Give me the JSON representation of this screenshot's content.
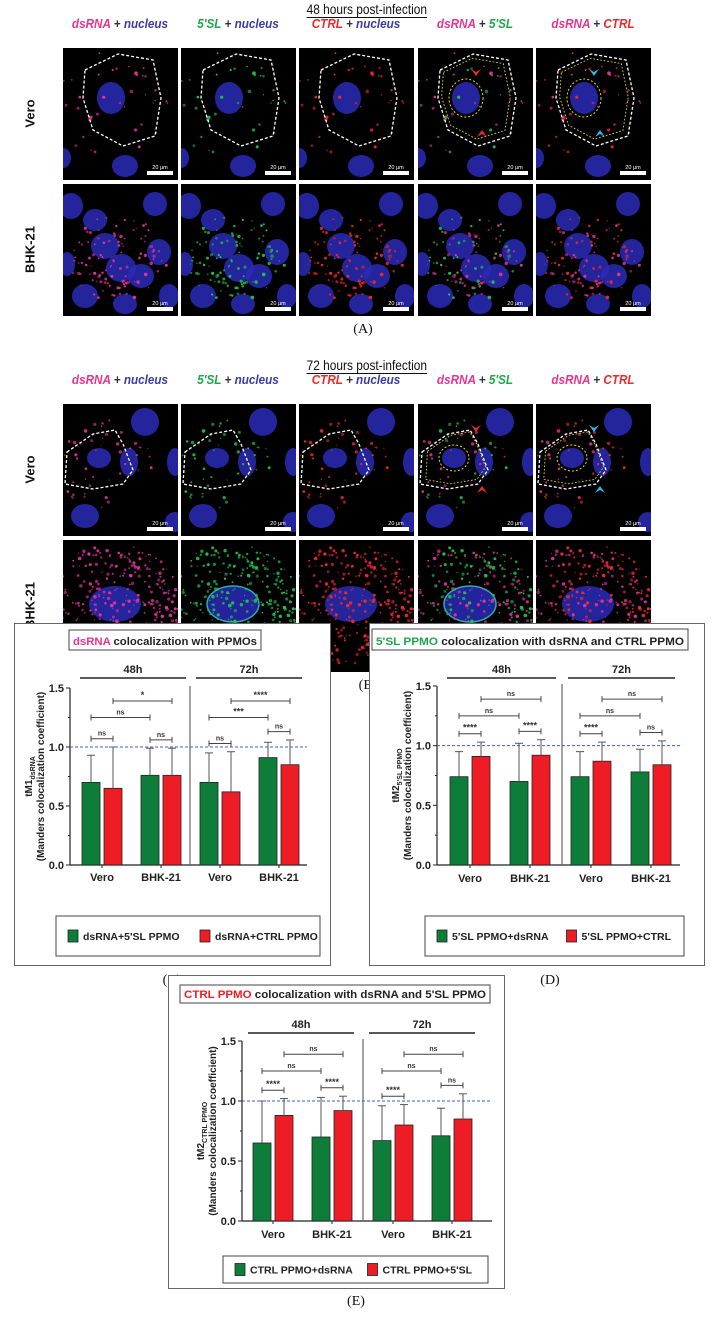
{
  "panels": [
    {
      "panel_label": "(A)",
      "title": "48 hours post-infection",
      "rows": [
        "Vero",
        "BHK-21"
      ],
      "columns": [
        [
          {
            "text": "dsRNA",
            "color": "#e8338b"
          },
          {
            "text": " + ",
            "color": "#333333"
          },
          {
            "text": "nucleus",
            "color": "#3b3ba6"
          }
        ],
        [
          {
            "text": "5'SL",
            "color": "#1fa64a"
          },
          {
            "text": " + ",
            "color": "#333333"
          },
          {
            "text": "nucleus",
            "color": "#3b3ba6"
          }
        ],
        [
          {
            "text": "CTRL",
            "color": "#ee2a2a"
          },
          {
            "text": " + ",
            "color": "#333333"
          },
          {
            "text": "nucleus",
            "color": "#3b3ba6"
          }
        ],
        [
          {
            "text": "dsRNA",
            "color": "#e8338b"
          },
          {
            "text": " + ",
            "color": "#333333"
          },
          {
            "text": "5'SL",
            "color": "#1fa64a"
          }
        ],
        [
          {
            "text": "dsRNA",
            "color": "#e8338b"
          },
          {
            "text": " + ",
            "color": "#333333"
          },
          {
            "text": "CTRL",
            "color": "#ee2a2a"
          }
        ]
      ],
      "scale_bar": "20 µm"
    },
    {
      "panel_label": "(B)",
      "title": "72 hours post-infection",
      "rows": [
        "Vero",
        "BHK-21"
      ],
      "columns": [
        [
          {
            "text": "dsRNA",
            "color": "#e8338b"
          },
          {
            "text": " + ",
            "color": "#333333"
          },
          {
            "text": "nucleus",
            "color": "#3b3ba6"
          }
        ],
        [
          {
            "text": "5'SL",
            "color": "#1fa64a"
          },
          {
            "text": " + ",
            "color": "#333333"
          },
          {
            "text": "nucleus",
            "color": "#3b3ba6"
          }
        ],
        [
          {
            "text": "CTRL",
            "color": "#ee2a2a"
          },
          {
            "text": " + ",
            "color": "#333333"
          },
          {
            "text": "nucleus",
            "color": "#3b3ba6"
          }
        ],
        [
          {
            "text": "dsRNA",
            "color": "#e8338b"
          },
          {
            "text": " + ",
            "color": "#333333"
          },
          {
            "text": "5'SL",
            "color": "#1fa64a"
          }
        ],
        [
          {
            "text": "dsRNA",
            "color": "#e8338b"
          },
          {
            "text": " + ",
            "color": "#333333"
          },
          {
            "text": "CTRL",
            "color": "#ee2a2a"
          }
        ]
      ],
      "scale_bar": "20 µm"
    }
  ],
  "chart_data": [
    {
      "type": "bar",
      "panel_label": "(C)",
      "title_highlight": "dsRNA",
      "title_highlight_color": "#e8338b",
      "title_rest": " colocalization with  PPMOs",
      "ylabel_main": "tM1",
      "ylabel_sub": "dsRNA",
      "ylabel_line2": "(Manders colocalization coefficient)",
      "ylim": [
        0,
        1.5
      ],
      "yticks": [
        "0.0",
        "0.5",
        "1.0",
        "1.5"
      ],
      "reference_line": 1.0,
      "groups": [
        "48h",
        "72h"
      ],
      "categories": [
        "Vero",
        "BHK-21",
        "Vero",
        "BHK-21"
      ],
      "series": [
        {
          "name": "dsRNA+5'SL PPMO",
          "color": "#0e7d3a",
          "values": [
            0.7,
            0.76,
            0.7,
            0.91
          ],
          "error_top": [
            0.93,
            0.99,
            0.95,
            1.04
          ]
        },
        {
          "name": "dsRNA+CTRL PPMO",
          "color": "#ee1c25",
          "values": [
            0.65,
            0.76,
            0.62,
            0.85
          ],
          "error_top": [
            1.0,
            0.99,
            0.96,
            1.06
          ]
        }
      ],
      "comparisons": [
        {
          "a": [
            0,
            0
          ],
          "b": [
            0,
            1
          ],
          "label": "ns"
        },
        {
          "a": [
            1,
            0
          ],
          "b": [
            1,
            1
          ],
          "label": "ns"
        },
        {
          "a": [
            0,
            0
          ],
          "b": [
            1,
            0
          ],
          "label": "ns"
        },
        {
          "a": [
            0,
            1
          ],
          "b": [
            1,
            1
          ],
          "label": "*"
        },
        {
          "a": [
            2,
            0
          ],
          "b": [
            2,
            1
          ],
          "label": "ns"
        },
        {
          "a": [
            3,
            0
          ],
          "b": [
            3,
            1
          ],
          "label": "ns"
        },
        {
          "a": [
            2,
            0
          ],
          "b": [
            3,
            0
          ],
          "label": "***"
        },
        {
          "a": [
            2,
            1
          ],
          "b": [
            3,
            1
          ],
          "label": "****"
        }
      ]
    },
    {
      "type": "bar",
      "panel_label": "(D)",
      "title_highlight": "5'SL PPMO",
      "title_highlight_color": "#1fa64a",
      "title_rest": " colocalization with dsRNA and  CTRL PPMO",
      "ylabel_main": "tM2",
      "ylabel_sub": "5'SL PPMO",
      "ylabel_line2": "(Manders colocalization coefficient)",
      "ylim": [
        0,
        1.5
      ],
      "yticks": [
        "0.0",
        "0.5",
        "1.0",
        "1.5"
      ],
      "reference_line": 1.0,
      "groups": [
        "48h",
        "72h"
      ],
      "categories": [
        "Vero",
        "BHK-21",
        "Vero",
        "BHK-21"
      ],
      "series": [
        {
          "name": "5'SL PPMO+dsRNA",
          "color": "#0e7d3a",
          "values": [
            0.74,
            0.7,
            0.74,
            0.78
          ],
          "error_top": [
            0.95,
            1.02,
            0.95,
            0.97
          ]
        },
        {
          "name": "5'SL PPMO+CTRL",
          "color": "#ee1c25",
          "values": [
            0.91,
            0.92,
            0.87,
            0.84
          ],
          "error_top": [
            1.03,
            1.05,
            1.03,
            1.04
          ]
        }
      ],
      "comparisons": [
        {
          "a": [
            0,
            0
          ],
          "b": [
            0,
            1
          ],
          "label": "****"
        },
        {
          "a": [
            1,
            0
          ],
          "b": [
            1,
            1
          ],
          "label": "****"
        },
        {
          "a": [
            0,
            0
          ],
          "b": [
            1,
            0
          ],
          "label": "ns"
        },
        {
          "a": [
            0,
            1
          ],
          "b": [
            1,
            1
          ],
          "label": "ns"
        },
        {
          "a": [
            2,
            0
          ],
          "b": [
            2,
            1
          ],
          "label": "****"
        },
        {
          "a": [
            3,
            0
          ],
          "b": [
            3,
            1
          ],
          "label": "ns"
        },
        {
          "a": [
            2,
            0
          ],
          "b": [
            3,
            0
          ],
          "label": "ns"
        },
        {
          "a": [
            2,
            1
          ],
          "b": [
            3,
            1
          ],
          "label": "ns"
        }
      ]
    },
    {
      "type": "bar",
      "panel_label": "(E)",
      "title_highlight": "CTRL PPMO",
      "title_highlight_color": "#ee1c25",
      "title_rest": " colocalization with dsRNA and  5'SL  PPMO",
      "ylabel_main": "tM2",
      "ylabel_sub": "CTRL PPMO",
      "ylabel_line2": "(Manders colocalization coefficient)",
      "ylim": [
        0,
        1.5
      ],
      "yticks": [
        "0.0",
        "0.5",
        "1.0",
        "1.5"
      ],
      "reference_line": 1.0,
      "groups": [
        "48h",
        "72h"
      ],
      "categories": [
        "Vero",
        "BHK-21",
        "Vero",
        "BHK-21"
      ],
      "series": [
        {
          "name": "CTRL PPMO+dsRNA",
          "color": "#0e7d3a",
          "values": [
            0.65,
            0.7,
            0.67,
            0.71
          ],
          "error_top": [
            1.0,
            1.03,
            0.96,
            0.94
          ]
        },
        {
          "name": "CTRL PPMO+5'SL",
          "color": "#ee1c25",
          "values": [
            0.88,
            0.92,
            0.8,
            0.85
          ],
          "error_top": [
            1.02,
            1.04,
            0.97,
            1.06
          ]
        }
      ],
      "comparisons": [
        {
          "a": [
            0,
            0
          ],
          "b": [
            0,
            1
          ],
          "label": "****"
        },
        {
          "a": [
            1,
            0
          ],
          "b": [
            1,
            1
          ],
          "label": "****"
        },
        {
          "a": [
            0,
            0
          ],
          "b": [
            1,
            0
          ],
          "label": "ns"
        },
        {
          "a": [
            0,
            1
          ],
          "b": [
            1,
            1
          ],
          "label": "ns"
        },
        {
          "a": [
            2,
            0
          ],
          "b": [
            2,
            1
          ],
          "label": "****"
        },
        {
          "a": [
            3,
            0
          ],
          "b": [
            3,
            1
          ],
          "label": "ns"
        },
        {
          "a": [
            2,
            0
          ],
          "b": [
            3,
            0
          ],
          "label": "ns"
        },
        {
          "a": [
            2,
            1
          ],
          "b": [
            3,
            1
          ],
          "label": "ns"
        }
      ]
    }
  ]
}
